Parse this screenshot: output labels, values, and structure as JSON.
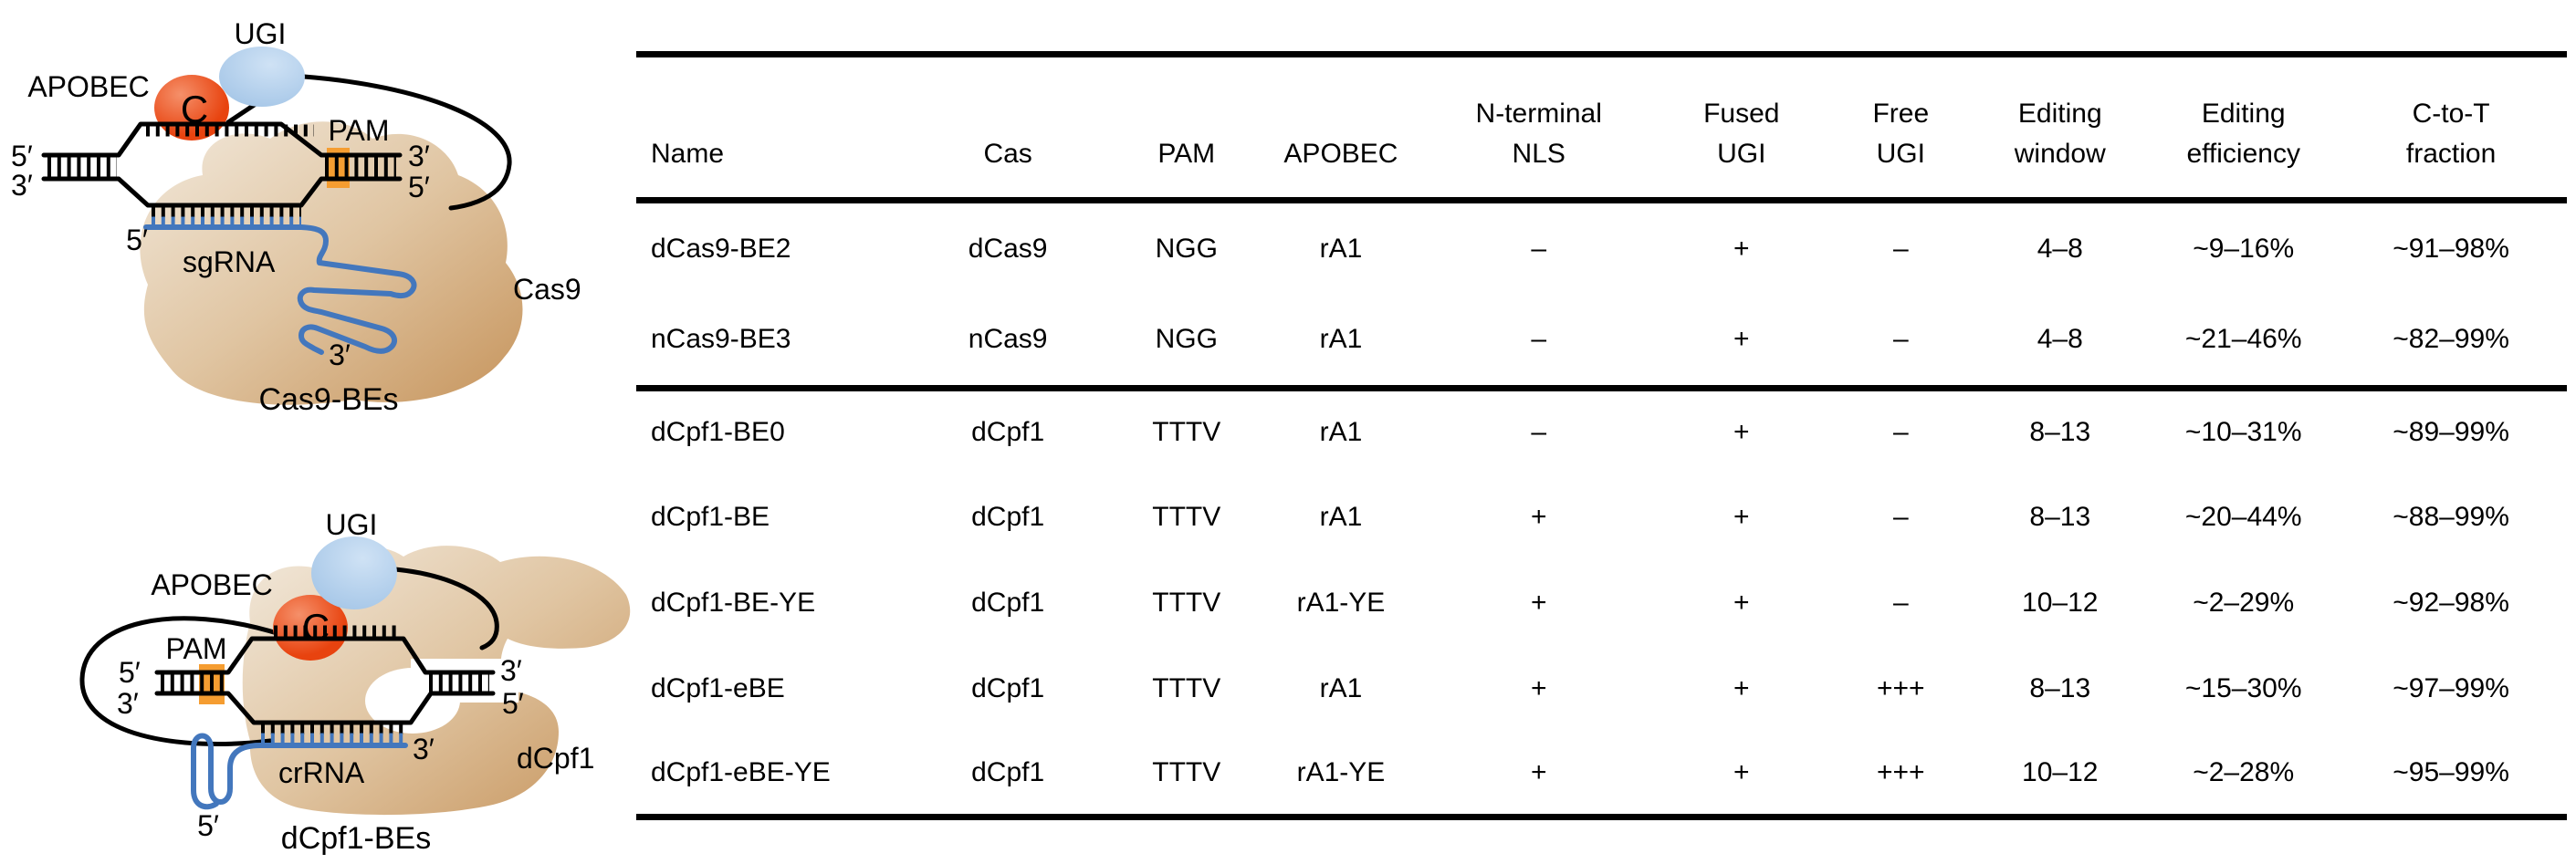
{
  "colors": {
    "apobec-red": "#e8430f",
    "apobec-red-light": "#f5906a",
    "ugi-blue": "#9cc0e4",
    "ugi-blue-light": "#cfe2f5",
    "protein-tan-light": "#f2e9dc",
    "protein-tan-mid": "#e0c5a2",
    "protein-tan-dark": "#c6945c",
    "rna-blue": "#4377bd",
    "pam-orange": "#f59d31",
    "ink": "#000000"
  },
  "diagram_top": {
    "ugi_label": "UGI",
    "apobec_label": "APOBEC",
    "c_label": "C",
    "pam_label": "PAM",
    "left_top_end": "5′",
    "left_bottom_end": "3′",
    "right_top_end": "3′",
    "right_bottom_end": "5′",
    "guide_five_end": "5′",
    "guide_label": "sgRNA",
    "guide_three_end": "3′",
    "protein_label": "Cas9",
    "caption": "Cas9-BEs"
  },
  "diagram_bottom": {
    "ugi_label": "UGI",
    "apobec_label": "APOBEC",
    "c_label": "C",
    "pam_label": "PAM",
    "left_top_end": "5′",
    "left_bottom_end": "3′",
    "right_top_end": "3′",
    "right_bottom_end": "5′",
    "guide_five_end": "5′",
    "guide_label": "crRNA",
    "guide_three_end": "3′",
    "protein_label": "dCpf1",
    "caption": "dCpf1-BEs"
  },
  "table": {
    "columns": [
      {
        "lines": [
          "Name"
        ],
        "width": 13.5
      },
      {
        "lines": [
          "Cas"
        ],
        "width": 11.5
      },
      {
        "lines": [
          "PAM"
        ],
        "width": 7
      },
      {
        "lines": [
          "APOBEC"
        ],
        "width": 9
      },
      {
        "lines": [
          "N-terminal",
          "NLS"
        ],
        "width": 11.5
      },
      {
        "lines": [
          "Fused",
          "UGI"
        ],
        "width": 9.5
      },
      {
        "lines": [
          "Free",
          "UGI"
        ],
        "width": 7
      },
      {
        "lines": [
          "Editing",
          "window"
        ],
        "width": 9.5
      },
      {
        "lines": [
          "Editing",
          "efficiency"
        ],
        "width": 9.5
      },
      {
        "lines": [
          "C-to-T",
          "fraction"
        ],
        "width": 12
      }
    ],
    "sections": [
      {
        "rows": [
          [
            "dCas9-BE2",
            "dCas9",
            "NGG",
            "rA1",
            "–",
            "+",
            "–",
            "4–8",
            "~9–16%",
            "~91–98%"
          ],
          [
            "nCas9-BE3",
            "nCas9",
            "NGG",
            "rA1",
            "–",
            "+",
            "–",
            "4–8",
            "~21–46%",
            "~82–99%"
          ]
        ]
      },
      {
        "rows": [
          [
            "dCpf1-BE0",
            "dCpf1",
            "TTTV",
            "rA1",
            "–",
            "+",
            "–",
            "8–13",
            "~10–31%",
            "~89–99%"
          ],
          [
            "dCpf1-BE",
            "dCpf1",
            "TTTV",
            "rA1",
            "+",
            "+",
            "–",
            "8–13",
            "~20–44%",
            "~88–99%"
          ],
          [
            "dCpf1-BE-YE",
            "dCpf1",
            "TTTV",
            "rA1-YE",
            "+",
            "+",
            "–",
            "10–12",
            "~2–29%",
            "~92–98%"
          ],
          [
            "dCpf1-eBE",
            "dCpf1",
            "TTTV",
            "rA1",
            "+",
            "+",
            "+++",
            "8–13",
            "~15–30%",
            "~97–99%"
          ],
          [
            "dCpf1-eBE-YE",
            "dCpf1",
            "TTTV",
            "rA1-YE",
            "+",
            "+",
            "+++",
            "10–12",
            "~2–28%",
            "~95–99%"
          ]
        ]
      }
    ]
  }
}
